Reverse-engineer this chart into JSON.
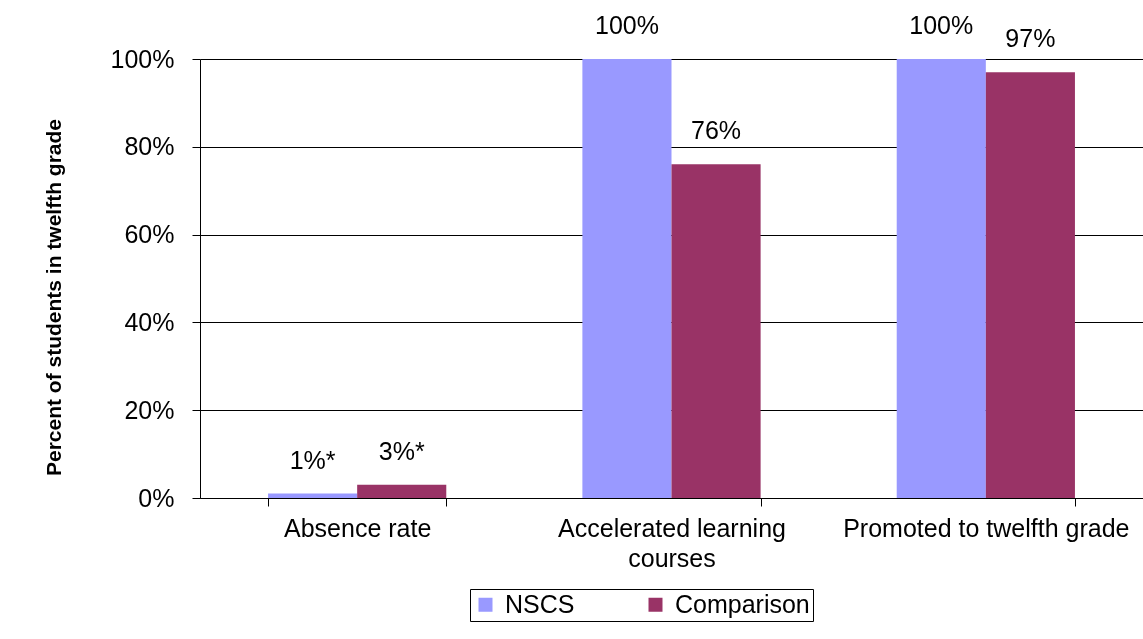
{
  "chart_data": {
    "type": "bar",
    "ylabel": "Percent of students in twelfth grade",
    "categories": [
      "Absence rate",
      "Accelerated learning courses",
      "Promoted to twelfth grade"
    ],
    "series": [
      {
        "name": "NSCS",
        "color": "#9999ff",
        "values": [
          1,
          100,
          100
        ],
        "value_labels": [
          "1%*",
          "100%",
          "100%"
        ]
      },
      {
        "name": "Comparison",
        "color": "#993366",
        "values": [
          3,
          76,
          97
        ],
        "value_labels": [
          "3%*",
          "76%",
          "97%"
        ]
      }
    ],
    "ylim": [
      0,
      100
    ],
    "yticks": [
      {
        "value": 0,
        "label": "0%"
      },
      {
        "value": 20,
        "label": "20%"
      },
      {
        "value": 40,
        "label": "40%"
      },
      {
        "value": 60,
        "label": "60%"
      },
      {
        "value": 80,
        "label": "80%"
      },
      {
        "value": 100,
        "label": "100%"
      }
    ],
    "grid": "y",
    "legend": "bottom"
  }
}
